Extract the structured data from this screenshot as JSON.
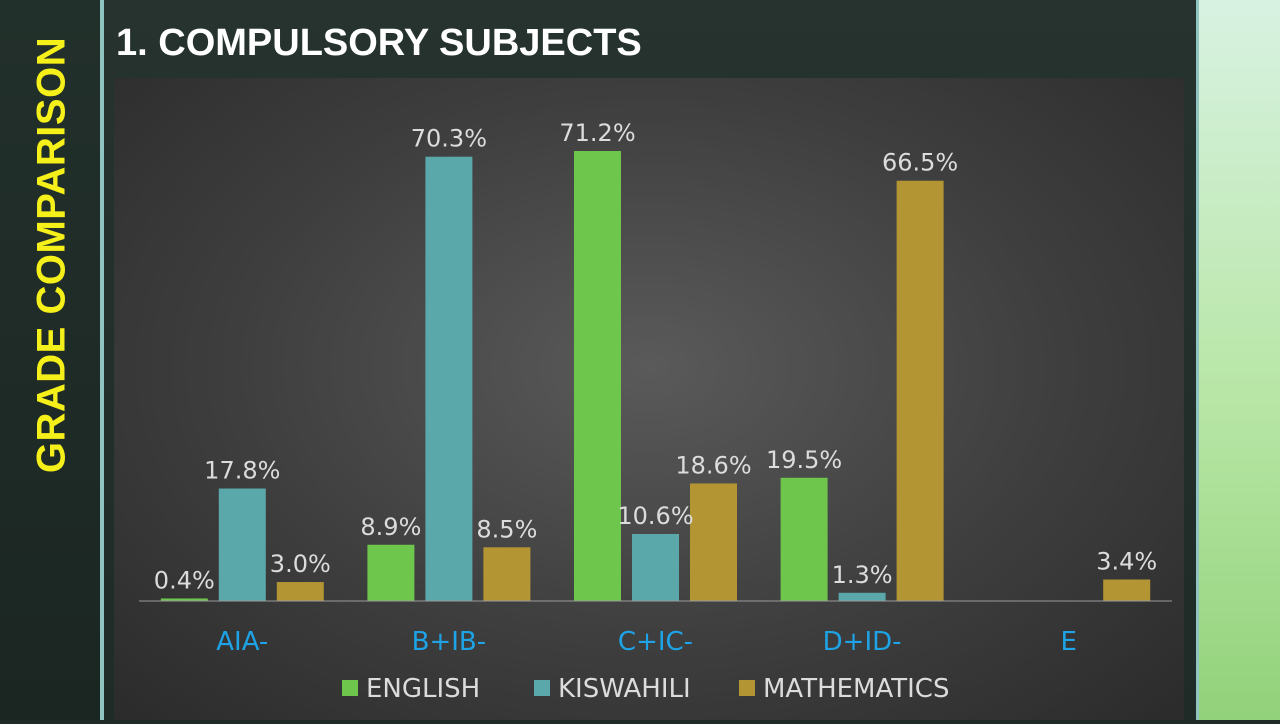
{
  "sidebar": {
    "title": "GRADE COMPARISON"
  },
  "slide": {
    "title": "1. COMPULSORY SUBJECTS"
  },
  "colors": {
    "english": "#6ec64d",
    "kiswahili": "#5aa8aa",
    "mathematics": "#b39533",
    "category_label": "#1ea3e6",
    "data_label": "#dcdcdc",
    "legend_text": "#dcdcdc",
    "sidebar_title": "#f5ef1a"
  },
  "chart_data": {
    "type": "bar",
    "title": "",
    "categories": [
      "AIA-",
      "B+IB-",
      "C+IC-",
      "D+ID-",
      "E"
    ],
    "series": [
      {
        "name": "ENGLISH",
        "values": [
          0.4,
          8.9,
          71.2,
          19.5,
          null
        ],
        "labels": [
          "0.4%",
          "8.9%",
          "71.2%",
          "19.5%",
          ""
        ]
      },
      {
        "name": "KISWAHILI",
        "values": [
          17.8,
          70.3,
          10.6,
          1.3,
          null
        ],
        "labels": [
          "17.8%",
          "70.3%",
          "10.6%",
          "1.3%",
          ""
        ]
      },
      {
        "name": "MATHEMATICS",
        "values": [
          3.0,
          8.5,
          18.6,
          66.5,
          3.4
        ],
        "labels": [
          "3.0%",
          "8.5%",
          "18.6%",
          "66.5%",
          "3.4%"
        ]
      }
    ],
    "ylim": [
      0,
      75
    ],
    "grid": false,
    "legend_position": "bottom"
  }
}
